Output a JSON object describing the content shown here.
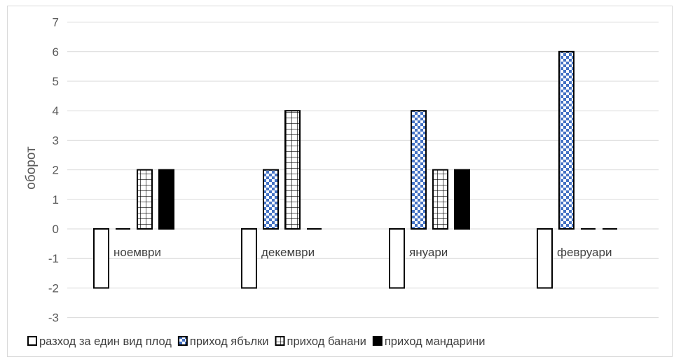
{
  "chart_data": {
    "type": "bar",
    "categories": [
      "ноември",
      "декември",
      "януари",
      "февруари"
    ],
    "series": [
      {
        "name": "разход за един вид плод",
        "values": [
          -2,
          -2,
          -2,
          -2
        ],
        "pattern": "blank"
      },
      {
        "name": "приход ябълки",
        "values": [
          0,
          2,
          4,
          6
        ],
        "pattern": "checker"
      },
      {
        "name": "приход банани",
        "values": [
          2,
          4,
          2,
          0
        ],
        "pattern": "grid"
      },
      {
        "name": "приход мандарини",
        "values": [
          2,
          0,
          2,
          0
        ],
        "pattern": "solid"
      }
    ],
    "ylabel": "оборот",
    "xlabel": "",
    "ylim": [
      -3,
      7
    ],
    "yticks": [
      -3,
      -2,
      -1,
      0,
      1,
      2,
      3,
      4,
      5,
      6,
      7
    ],
    "grid": true,
    "legend_position": "bottom",
    "colors": {
      "checker_a": "#4472c4",
      "checker_b": "#ffffff",
      "bar_outline": "#000000",
      "solid": "#000000",
      "gridline": "#d9d9d9",
      "axis_text": "#595959"
    }
  }
}
